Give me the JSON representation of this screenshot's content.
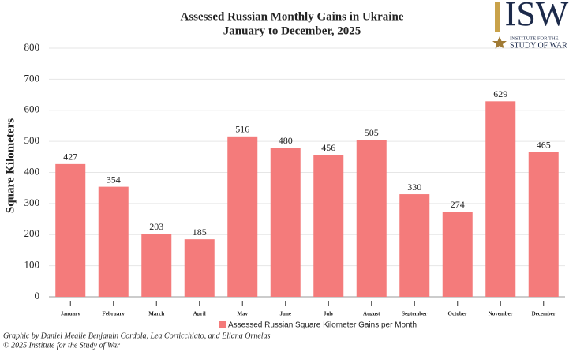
{
  "chart_data": {
    "type": "bar",
    "title": "Assessed Russian Monthly Gains in Ukraine",
    "subtitle": "January to December, 2025",
    "y_label": "Square Kilometers",
    "categories": [
      "January",
      "February",
      "March",
      "April",
      "May",
      "June",
      "July",
      "August",
      "September",
      "October",
      "November",
      "December"
    ],
    "series": [
      {
        "name": "Assessed Russian Square Kilometer Gains per Month",
        "color": "#f47b7b",
        "values": [
          427,
          354,
          203,
          185,
          516,
          480,
          456,
          505,
          330,
          274,
          629,
          465
        ]
      }
    ],
    "ylim": [
      0,
      800
    ],
    "yticks": [
      0,
      100,
      200,
      300,
      400,
      500,
      600,
      700,
      800
    ],
    "grid": true,
    "legend": "bottom",
    "credits": [
      "Graphic by Daniel Mealie Benjamin Cordola, Lea Corticchiato, and Eliana Ornelas",
      "© 2025 Institute for the Study of War"
    ]
  },
  "logo": {
    "mark": "ISW",
    "line1": "INSTITUTE FOR THE",
    "line2": "STUDY OF WAR"
  }
}
